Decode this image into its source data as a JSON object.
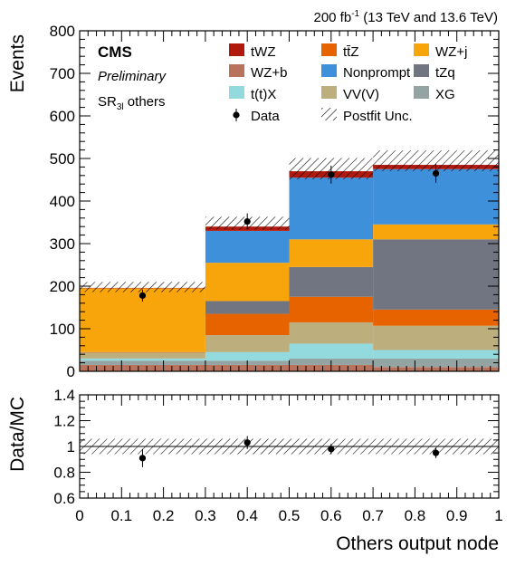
{
  "header": {
    "lumi_value": "200 fb",
    "lumi_sup": "-1",
    "lumi_rest": " (13 TeV and 13.6 TeV)"
  },
  "labels": {
    "experiment": "CMS",
    "status": "Preliminary",
    "region_main": "SR",
    "region_sub": "3l",
    "region_rest": " others"
  },
  "chart_data": [
    {
      "type": "bar",
      "stacked": true,
      "ylabel": "Events",
      "xlabel": "Others output node",
      "xlim": [
        0,
        1
      ],
      "ylim": [
        0,
        800
      ],
      "x_ticks": [
        "0",
        "0.1",
        "0.2",
        "0.3",
        "0.4",
        "0.5",
        "0.6",
        "0.7",
        "0.8",
        "0.9",
        "1"
      ],
      "y_ticks": [
        "0",
        "100",
        "200",
        "300",
        "400",
        "500",
        "600",
        "700",
        "800"
      ],
      "bin_edges": [
        0,
        0.3,
        0.5,
        0.7,
        1.0
      ],
      "legend_placement": "top",
      "legend": [
        {
          "name": "tWZ",
          "color": "#b2190d"
        },
        {
          "name": "tt̄Z",
          "color": "#e76300"
        },
        {
          "name": "WZ+j",
          "color": "#f8a50b"
        },
        {
          "name": "WZ+b",
          "color": "#b9735d"
        },
        {
          "name": "Nonprompt",
          "color": "#3f90da"
        },
        {
          "name": "tZq",
          "color": "#717581"
        },
        {
          "name": "t(t)X",
          "color": "#92dadd"
        },
        {
          "name": "VV(V)",
          "color": "#bdae7e"
        },
        {
          "name": "XG",
          "color": "#94a4a2"
        },
        {
          "name": "Data",
          "color": "#000000"
        },
        {
          "name": "Postfit Unc.",
          "color": "#000000"
        }
      ],
      "series": [
        {
          "name": "WZ+b",
          "color": "#b9735d",
          "values": [
            15,
            15,
            15,
            10
          ]
        },
        {
          "name": "XG",
          "color": "#94a4a2",
          "values": [
            10,
            10,
            15,
            20
          ]
        },
        {
          "name": "t(t)X",
          "color": "#92dadd",
          "values": [
            5,
            20,
            35,
            20
          ]
        },
        {
          "name": "VV(V)",
          "color": "#bdae7e",
          "values": [
            13,
            40,
            50,
            57
          ]
        },
        {
          "name": "tt̄Z",
          "color": "#e76300",
          "values": [
            1,
            50,
            60,
            38
          ]
        },
        {
          "name": "tZq",
          "color": "#717581",
          "values": [
            1,
            30,
            70,
            165
          ]
        },
        {
          "name": "WZ+j",
          "color": "#f8a50b",
          "values": [
            150,
            90,
            65,
            35
          ]
        },
        {
          "name": "Nonprompt",
          "color": "#3f90da",
          "values": [
            0,
            75,
            145,
            130
          ]
        },
        {
          "name": "tWZ",
          "color": "#b2190d",
          "values": [
            1,
            10,
            15,
            10
          ]
        }
      ],
      "data": {
        "name": "Data",
        "x": [
          0.15,
          0.4,
          0.6,
          0.85
        ],
        "y": [
          178,
          352,
          462,
          465
        ],
        "yerr": [
          14,
          19,
          21,
          22
        ]
      },
      "uncertainty": {
        "name": "Postfit Unc.",
        "low": [
          186,
          333,
          451,
          470
        ],
        "high": [
          210,
          363,
          501,
          519
        ]
      }
    },
    {
      "type": "scatter",
      "ylabel": "Data/MC",
      "xlabel": "Others output node",
      "xlim": [
        0,
        1
      ],
      "ylim": [
        0.6,
        1.4
      ],
      "x_ticks": [
        "0",
        "0.1",
        "0.2",
        "0.3",
        "0.4",
        "0.5",
        "0.6",
        "0.7",
        "0.8",
        "0.9",
        "1"
      ],
      "y_ticks": [
        "0.6",
        "0.8",
        "1",
        "1.2",
        "1.4"
      ],
      "reference_line": 1,
      "ratio": {
        "x": [
          0.15,
          0.4,
          0.6,
          0.85
        ],
        "y": [
          0.91,
          1.03,
          0.98,
          0.95
        ],
        "yerr": [
          0.07,
          0.05,
          0.04,
          0.04
        ]
      },
      "band": {
        "low": 0.94,
        "high": 1.06
      }
    }
  ]
}
